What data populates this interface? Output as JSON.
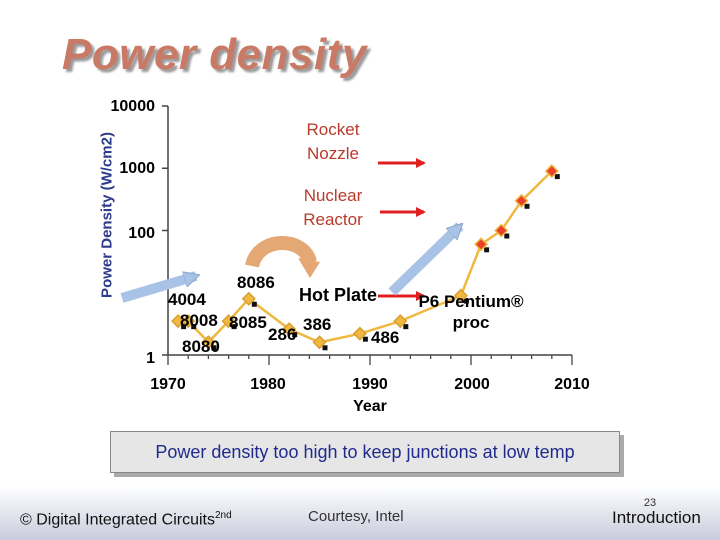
{
  "slide": {
    "title": "Power density",
    "banner": "Power density too high to keep junctions at low temp",
    "footer": {
      "copyright_prefix": "© Digital Integrated Circuits",
      "copyright_sup": "2nd",
      "courtesy": "Courtesy, Intel",
      "page_number": "23",
      "section": "Introduction"
    }
  },
  "chart_data": {
    "type": "line",
    "title": "",
    "xlabel": "Year",
    "ylabel": "Power Density (W/cm2)",
    "xlim": [
      1970,
      2010
    ],
    "ylim": [
      1,
      10000
    ],
    "yscale": "log",
    "x_ticks": [
      "1970",
      "1980",
      "1990",
      "2000",
      "2010"
    ],
    "y_ticks": [
      "1",
      "100",
      "1000",
      "10000"
    ],
    "grid": false,
    "legend": "none",
    "series": [
      {
        "color": "#f0b840",
        "points": [
          {
            "x": 1971,
            "y": 3.5,
            "label": "4004"
          },
          {
            "x": 1972,
            "y": 3.5,
            "label": "8008"
          },
          {
            "x": 1974,
            "y": 1.6,
            "label": "8080"
          },
          {
            "x": 1976,
            "y": 3.5,
            "label": "8085"
          },
          {
            "x": 1978,
            "y": 8,
            "label": "8086"
          },
          {
            "x": 1982,
            "y": 2.6,
            "label": "286"
          },
          {
            "x": 1985,
            "y": 1.6,
            "label": "386"
          },
          {
            "x": 1989,
            "y": 2.2,
            "label": "486"
          },
          {
            "x": 1993,
            "y": 3.5,
            "label": "P6 Pentium® proc"
          },
          {
            "x": 1999,
            "y": 9
          },
          {
            "x": 2001,
            "y": 60
          },
          {
            "x": 2003,
            "y": 100
          },
          {
            "x": 2005,
            "y": 300
          },
          {
            "x": 2008,
            "y": 900
          }
        ],
        "highlighted_x": [
          2001,
          2003,
          2005,
          2008
        ],
        "highlight_color": "#e8412c"
      }
    ],
    "reference_levels": [
      {
        "label": "Hot Plate",
        "y": 8
      },
      {
        "label": "Nuclear Reactor",
        "y": 150
      },
      {
        "label": "Rocket Nozzle",
        "y": 900
      }
    ]
  }
}
